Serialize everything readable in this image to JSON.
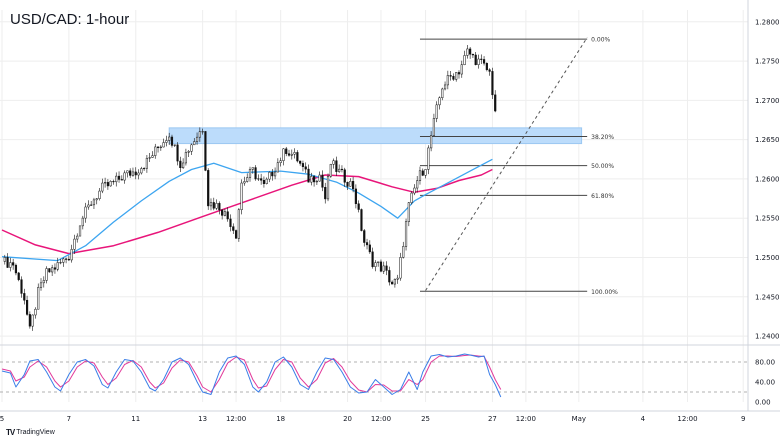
{
  "header": {
    "title": "USD/CAD: 1-hour"
  },
  "brand": {
    "name": "TradingView",
    "icon": "tradingview-logo-icon"
  },
  "colors": {
    "candle": "#111111",
    "fast_ma": "#3da5f0",
    "slow_ma": "#e8157a",
    "zone_fill": "#bcdcfb",
    "zone_edge": "#9cc8f2",
    "rsi_k": "#3a7ee8",
    "rsi_d": "#e23a9a",
    "grid": "#eeeeee"
  },
  "chart_data": [
    {
      "type": "candlestick",
      "title": "USD/CAD: 1-hour",
      "ylim": [
        1.2395,
        1.2815
      ],
      "y_ticks": [
        "1.28000",
        "1.27500",
        "1.27000",
        "1.26500",
        "1.26000",
        "1.25500",
        "1.25000",
        "1.24500",
        "1.24000"
      ],
      "y_tick_values": [
        1.28,
        1.275,
        1.27,
        1.265,
        1.26,
        1.255,
        1.25,
        1.245,
        1.24
      ],
      "x_ticks": [
        "5",
        "7",
        "11",
        "13",
        "12:00",
        "18",
        "20",
        "12:00",
        "25",
        "27",
        "12:00",
        "May",
        "4",
        "12:00",
        "9"
      ],
      "x_tick_index": [
        0,
        24,
        48,
        72,
        84,
        100,
        124,
        136,
        152,
        176,
        188,
        207,
        230,
        246,
        266
      ],
      "bars_total": 268,
      "price_path": [
        [
          0,
          1.2495
        ],
        [
          4,
          1.2492
        ],
        [
          8,
          1.2448
        ],
        [
          10,
          1.2406
        ],
        [
          13,
          1.2455
        ],
        [
          16,
          1.248
        ],
        [
          20,
          1.249
        ],
        [
          24,
          1.2502
        ],
        [
          28,
          1.2545
        ],
        [
          32,
          1.257
        ],
        [
          36,
          1.2588
        ],
        [
          40,
          1.2595
        ],
        [
          44,
          1.2605
        ],
        [
          48,
          1.261
        ],
        [
          52,
          1.2622
        ],
        [
          56,
          1.264
        ],
        [
          60,
          1.2658
        ],
        [
          64,
          1.262
        ],
        [
          68,
          1.2645
        ],
        [
          72,
          1.2665
        ],
        [
          74,
          1.257
        ],
        [
          78,
          1.2565
        ],
        [
          82,
          1.2545
        ],
        [
          84,
          1.253
        ],
        [
          86,
          1.2595
        ],
        [
          90,
          1.261
        ],
        [
          94,
          1.259
        ],
        [
          98,
          1.2615
        ],
        [
          102,
          1.2638
        ],
        [
          106,
          1.2625
        ],
        [
          110,
          1.26
        ],
        [
          114,
          1.2605
        ],
        [
          116,
          1.2575
        ],
        [
          118,
          1.262
        ],
        [
          122,
          1.2605
        ],
        [
          126,
          1.259
        ],
        [
          130,
          1.252
        ],
        [
          133,
          1.2495
        ],
        [
          137,
          1.2485
        ],
        [
          140,
          1.2467
        ],
        [
          142,
          1.247
        ],
        [
          144,
          1.252
        ],
        [
          146,
          1.2565
        ],
        [
          149,
          1.2598
        ],
        [
          152,
          1.2618
        ],
        [
          154,
          1.2655
        ],
        [
          156,
          1.2688
        ],
        [
          158,
          1.2718
        ],
        [
          161,
          1.273
        ],
        [
          164,
          1.2738
        ],
        [
          167,
          1.2762
        ],
        [
          170,
          1.2752
        ],
        [
          172,
          1.2747
        ],
        [
          175,
          1.2735
        ],
        [
          177,
          1.2688
        ]
      ],
      "fast_ma": [
        [
          0,
          1.2501
        ],
        [
          20,
          1.2496
        ],
        [
          30,
          1.2515
        ],
        [
          40,
          1.2545
        ],
        [
          50,
          1.2572
        ],
        [
          60,
          1.2597
        ],
        [
          68,
          1.2612
        ],
        [
          76,
          1.262
        ],
        [
          86,
          1.2608
        ],
        [
          100,
          1.261
        ],
        [
          110,
          1.2606
        ],
        [
          120,
          1.2596
        ],
        [
          128,
          1.2582
        ],
        [
          136,
          1.2565
        ],
        [
          142,
          1.255
        ],
        [
          148,
          1.2572
        ],
        [
          152,
          1.258
        ],
        [
          160,
          1.2595
        ],
        [
          168,
          1.261
        ],
        [
          176,
          1.2625
        ]
      ],
      "slow_ma": [
        [
          0,
          1.2535
        ],
        [
          12,
          1.2516
        ],
        [
          24,
          1.2505
        ],
        [
          40,
          1.2515
        ],
        [
          56,
          1.2532
        ],
        [
          72,
          1.2552
        ],
        [
          88,
          1.2572
        ],
        [
          104,
          1.2592
        ],
        [
          116,
          1.2605
        ],
        [
          128,
          1.2603
        ],
        [
          140,
          1.259
        ],
        [
          148,
          1.2583
        ],
        [
          156,
          1.2588
        ],
        [
          164,
          1.2598
        ],
        [
          172,
          1.2605
        ],
        [
          176,
          1.2612
        ]
      ],
      "resistance_zone": {
        "from": 1.2645,
        "to": 1.2665,
        "x_from": 60,
        "x_to": 208
      },
      "fibonacci": {
        "x_from": 150,
        "x_to": 210,
        "levels": [
          {
            "label": "0.00%",
            "price": 1.2778
          },
          {
            "label": "38.20%",
            "price": 1.2654
          },
          {
            "label": "50.00%",
            "price": 1.2617
          },
          {
            "label": "61.80%",
            "price": 1.2579
          },
          {
            "label": "100.00%",
            "price": 1.2457
          }
        ]
      },
      "trend_line": [
        [
          152,
          1.2458
        ],
        [
          210,
          1.278
        ]
      ]
    },
    {
      "type": "line",
      "title": "Stochastic RSI",
      "ylim": [
        0,
        100
      ],
      "y_ticks": [
        "80.00",
        "40.00",
        "0.00"
      ],
      "y_tick_values": [
        80,
        40,
        0
      ],
      "levels": [
        80,
        20
      ],
      "series": [
        {
          "key": "k",
          "values": [
            [
              0,
              62
            ],
            [
              3,
              58
            ],
            [
              5,
              30
            ],
            [
              8,
              55
            ],
            [
              10,
              82
            ],
            [
              13,
              85
            ],
            [
              16,
              60
            ],
            [
              19,
              30
            ],
            [
              21,
              22
            ],
            [
              24,
              55
            ],
            [
              27,
              80
            ],
            [
              30,
              85
            ],
            [
              33,
              72
            ],
            [
              36,
              35
            ],
            [
              38,
              28
            ],
            [
              41,
              60
            ],
            [
              44,
              85
            ],
            [
              47,
              82
            ],
            [
              50,
              60
            ],
            [
              53,
              28
            ],
            [
              55,
              22
            ],
            [
              58,
              45
            ],
            [
              61,
              80
            ],
            [
              64,
              88
            ],
            [
              67,
              75
            ],
            [
              70,
              40
            ],
            [
              72,
              20
            ],
            [
              75,
              15
            ],
            [
              78,
              60
            ],
            [
              81,
              88
            ],
            [
              84,
              92
            ],
            [
              87,
              75
            ],
            [
              90,
              30
            ],
            [
              92,
              20
            ],
            [
              95,
              40
            ],
            [
              98,
              80
            ],
            [
              101,
              90
            ],
            [
              104,
              70
            ],
            [
              107,
              35
            ],
            [
              110,
              25
            ],
            [
              113,
              60
            ],
            [
              116,
              88
            ],
            [
              119,
              85
            ],
            [
              122,
              60
            ],
            [
              125,
              30
            ],
            [
              128,
              18
            ],
            [
              131,
              20
            ],
            [
              134,
              45
            ],
            [
              137,
              30
            ],
            [
              140,
              15
            ],
            [
              143,
              25
            ],
            [
              146,
              60
            ],
            [
              149,
              25
            ],
            [
              151,
              60
            ],
            [
              154,
              92
            ],
            [
              157,
              95
            ],
            [
              160,
              90
            ],
            [
              163,
              92
            ],
            [
              166,
              96
            ],
            [
              168,
              94
            ],
            [
              171,
              90
            ],
            [
              173,
              92
            ],
            [
              175,
              55
            ],
            [
              177,
              35
            ],
            [
              179,
              10
            ]
          ]
        },
        {
          "key": "d",
          "values": [
            [
              0,
              66
            ],
            [
              3,
              62
            ],
            [
              5,
              42
            ],
            [
              8,
              50
            ],
            [
              10,
              70
            ],
            [
              13,
              82
            ],
            [
              16,
              70
            ],
            [
              19,
              42
            ],
            [
              21,
              30
            ],
            [
              24,
              42
            ],
            [
              27,
              70
            ],
            [
              30,
              82
            ],
            [
              33,
              78
            ],
            [
              36,
              50
            ],
            [
              38,
              35
            ],
            [
              41,
              48
            ],
            [
              44,
              75
            ],
            [
              47,
              83
            ],
            [
              50,
              70
            ],
            [
              53,
              40
            ],
            [
              55,
              28
            ],
            [
              58,
              38
            ],
            [
              61,
              68
            ],
            [
              64,
              84
            ],
            [
              67,
              80
            ],
            [
              70,
              52
            ],
            [
              72,
              30
            ],
            [
              75,
              20
            ],
            [
              78,
              45
            ],
            [
              81,
              78
            ],
            [
              84,
              90
            ],
            [
              87,
              84
            ],
            [
              90,
              45
            ],
            [
              92,
              28
            ],
            [
              95,
              32
            ],
            [
              98,
              65
            ],
            [
              101,
              85
            ],
            [
              104,
              80
            ],
            [
              107,
              48
            ],
            [
              110,
              30
            ],
            [
              113,
              45
            ],
            [
              116,
              78
            ],
            [
              119,
              87
            ],
            [
              122,
              70
            ],
            [
              125,
              42
            ],
            [
              128,
              24
            ],
            [
              131,
              20
            ],
            [
              134,
              35
            ],
            [
              137,
              34
            ],
            [
              140,
              22
            ],
            [
              143,
              22
            ],
            [
              146,
              45
            ],
            [
              149,
              35
            ],
            [
              151,
              45
            ],
            [
              154,
              80
            ],
            [
              157,
              92
            ],
            [
              160,
              92
            ],
            [
              163,
              91
            ],
            [
              166,
              93
            ],
            [
              168,
              94
            ],
            [
              171,
              92
            ],
            [
              173,
              91
            ],
            [
              175,
              70
            ],
            [
              177,
              45
            ],
            [
              179,
              25
            ]
          ]
        }
      ]
    }
  ]
}
